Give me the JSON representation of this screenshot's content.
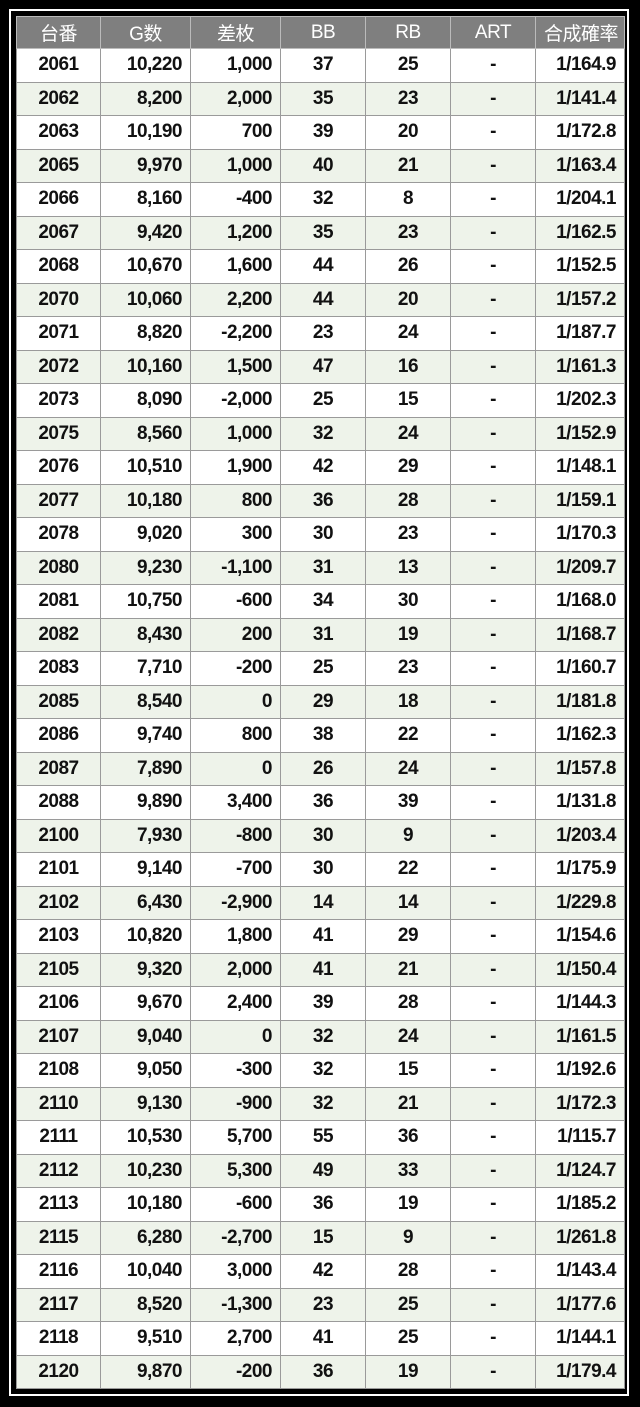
{
  "columns": [
    "台番",
    "G数",
    "差枚",
    "BB",
    "RB",
    "ART",
    "合成確率"
  ],
  "rows": [
    [
      "2061",
      "10,220",
      "1,000",
      "37",
      "25",
      "-",
      "1/164.9"
    ],
    [
      "2062",
      "8,200",
      "2,000",
      "35",
      "23",
      "-",
      "1/141.4"
    ],
    [
      "2063",
      "10,190",
      "700",
      "39",
      "20",
      "-",
      "1/172.8"
    ],
    [
      "2065",
      "9,970",
      "1,000",
      "40",
      "21",
      "-",
      "1/163.4"
    ],
    [
      "2066",
      "8,160",
      "-400",
      "32",
      "8",
      "-",
      "1/204.1"
    ],
    [
      "2067",
      "9,420",
      "1,200",
      "35",
      "23",
      "-",
      "1/162.5"
    ],
    [
      "2068",
      "10,670",
      "1,600",
      "44",
      "26",
      "-",
      "1/152.5"
    ],
    [
      "2070",
      "10,060",
      "2,200",
      "44",
      "20",
      "-",
      "1/157.2"
    ],
    [
      "2071",
      "8,820",
      "-2,200",
      "23",
      "24",
      "-",
      "1/187.7"
    ],
    [
      "2072",
      "10,160",
      "1,500",
      "47",
      "16",
      "-",
      "1/161.3"
    ],
    [
      "2073",
      "8,090",
      "-2,000",
      "25",
      "15",
      "-",
      "1/202.3"
    ],
    [
      "2075",
      "8,560",
      "1,000",
      "32",
      "24",
      "-",
      "1/152.9"
    ],
    [
      "2076",
      "10,510",
      "1,900",
      "42",
      "29",
      "-",
      "1/148.1"
    ],
    [
      "2077",
      "10,180",
      "800",
      "36",
      "28",
      "-",
      "1/159.1"
    ],
    [
      "2078",
      "9,020",
      "300",
      "30",
      "23",
      "-",
      "1/170.3"
    ],
    [
      "2080",
      "9,230",
      "-1,100",
      "31",
      "13",
      "-",
      "1/209.7"
    ],
    [
      "2081",
      "10,750",
      "-600",
      "34",
      "30",
      "-",
      "1/168.0"
    ],
    [
      "2082",
      "8,430",
      "200",
      "31",
      "19",
      "-",
      "1/168.7"
    ],
    [
      "2083",
      "7,710",
      "-200",
      "25",
      "23",
      "-",
      "1/160.7"
    ],
    [
      "2085",
      "8,540",
      "0",
      "29",
      "18",
      "-",
      "1/181.8"
    ],
    [
      "2086",
      "9,740",
      "800",
      "38",
      "22",
      "-",
      "1/162.3"
    ],
    [
      "2087",
      "7,890",
      "0",
      "26",
      "24",
      "-",
      "1/157.8"
    ],
    [
      "2088",
      "9,890",
      "3,400",
      "36",
      "39",
      "-",
      "1/131.8"
    ],
    [
      "2100",
      "7,930",
      "-800",
      "30",
      "9",
      "-",
      "1/203.4"
    ],
    [
      "2101",
      "9,140",
      "-700",
      "30",
      "22",
      "-",
      "1/175.9"
    ],
    [
      "2102",
      "6,430",
      "-2,900",
      "14",
      "14",
      "-",
      "1/229.8"
    ],
    [
      "2103",
      "10,820",
      "1,800",
      "41",
      "29",
      "-",
      "1/154.6"
    ],
    [
      "2105",
      "9,320",
      "2,000",
      "41",
      "21",
      "-",
      "1/150.4"
    ],
    [
      "2106",
      "9,670",
      "2,400",
      "39",
      "28",
      "-",
      "1/144.3"
    ],
    [
      "2107",
      "9,040",
      "0",
      "32",
      "24",
      "-",
      "1/161.5"
    ],
    [
      "2108",
      "9,050",
      "-300",
      "32",
      "15",
      "-",
      "1/192.6"
    ],
    [
      "2110",
      "9,130",
      "-900",
      "32",
      "21",
      "-",
      "1/172.3"
    ],
    [
      "2111",
      "10,530",
      "5,700",
      "55",
      "36",
      "-",
      "1/115.7"
    ],
    [
      "2112",
      "10,230",
      "5,300",
      "49",
      "33",
      "-",
      "1/124.7"
    ],
    [
      "2113",
      "10,180",
      "-600",
      "36",
      "19",
      "-",
      "1/185.2"
    ],
    [
      "2115",
      "6,280",
      "-2,700",
      "15",
      "9",
      "-",
      "1/261.8"
    ],
    [
      "2116",
      "10,040",
      "3,000",
      "42",
      "28",
      "-",
      "1/143.4"
    ],
    [
      "2117",
      "8,520",
      "-1,300",
      "23",
      "25",
      "-",
      "1/177.6"
    ],
    [
      "2118",
      "9,510",
      "2,700",
      "41",
      "25",
      "-",
      "1/144.1"
    ],
    [
      "2120",
      "9,870",
      "-200",
      "36",
      "19",
      "-",
      "1/179.4"
    ]
  ],
  "colors": {
    "header_bg": "#7f7f7f",
    "alt_row_bg": "#eef3ea",
    "row_bg": "#ffffff",
    "frame": "#000000"
  }
}
